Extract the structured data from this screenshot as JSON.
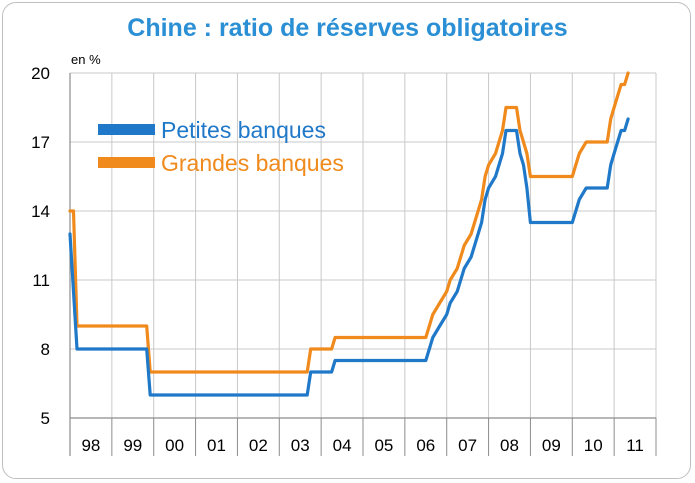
{
  "chart_data": {
    "type": "line",
    "title": "Chine : ratio de réserves obligatoires",
    "unit_label": "en %",
    "xlabel": "",
    "ylabel": "",
    "ylim": [
      5,
      20
    ],
    "xlim": [
      "1998-01",
      "2011-12"
    ],
    "y_ticks": [
      5,
      8,
      11,
      14,
      17,
      20
    ],
    "x_tick_labels": [
      "98",
      "99",
      "00",
      "01",
      "02",
      "03",
      "04",
      "05",
      "06",
      "07",
      "08",
      "09",
      "10",
      "11"
    ],
    "grid": true,
    "legend_position": "top-left",
    "series": [
      {
        "name": "Petites banques",
        "color": "#1f78c8",
        "points": [
          [
            "1998-01",
            13
          ],
          [
            "1998-03",
            8
          ],
          [
            "1999-11",
            8
          ],
          [
            "1999-12",
            6
          ],
          [
            "2003-09",
            6
          ],
          [
            "2003-10",
            7
          ],
          [
            "2004-04",
            7
          ],
          [
            "2004-05",
            7.5
          ],
          [
            "2006-07",
            7.5
          ],
          [
            "2006-08",
            8
          ],
          [
            "2006-09",
            8.5
          ],
          [
            "2006-11",
            9
          ],
          [
            "2007-01",
            9.5
          ],
          [
            "2007-02",
            10
          ],
          [
            "2007-04",
            10.5
          ],
          [
            "2007-05",
            11
          ],
          [
            "2007-06",
            11.5
          ],
          [
            "2007-08",
            12
          ],
          [
            "2007-09",
            12.5
          ],
          [
            "2007-10",
            13
          ],
          [
            "2007-11",
            13.5
          ],
          [
            "2007-12",
            14.5
          ],
          [
            "2008-01",
            15
          ],
          [
            "2008-03",
            15.5
          ],
          [
            "2008-04",
            16
          ],
          [
            "2008-05",
            16.5
          ],
          [
            "2008-06",
            17.5
          ],
          [
            "2008-09",
            17.5
          ],
          [
            "2008-10",
            16.5
          ],
          [
            "2008-11",
            16
          ],
          [
            "2008-12",
            15
          ],
          [
            "2009-01",
            13.5
          ],
          [
            "2010-01",
            13.5
          ],
          [
            "2010-02",
            14
          ],
          [
            "2010-03",
            14.5
          ],
          [
            "2010-05",
            15
          ],
          [
            "2010-11",
            15
          ],
          [
            "2010-12",
            16
          ],
          [
            "2011-01",
            16.5
          ],
          [
            "2011-02",
            17
          ],
          [
            "2011-03",
            17.5
          ],
          [
            "2011-04",
            17.5
          ],
          [
            "2011-05",
            18
          ]
        ]
      },
      {
        "name": "Grandes banques",
        "color": "#f08a1c",
        "points": [
          [
            "1998-01",
            14
          ],
          [
            "1998-02",
            14
          ],
          [
            "1998-03",
            9
          ],
          [
            "1999-11",
            9
          ],
          [
            "1999-12",
            7
          ],
          [
            "2003-09",
            7
          ],
          [
            "2003-10",
            8
          ],
          [
            "2004-04",
            8
          ],
          [
            "2004-05",
            8.5
          ],
          [
            "2006-07",
            8.5
          ],
          [
            "2006-08",
            9
          ],
          [
            "2006-09",
            9.5
          ],
          [
            "2006-11",
            10
          ],
          [
            "2007-01",
            10.5
          ],
          [
            "2007-02",
            11
          ],
          [
            "2007-04",
            11.5
          ],
          [
            "2007-05",
            12
          ],
          [
            "2007-06",
            12.5
          ],
          [
            "2007-08",
            13
          ],
          [
            "2007-09",
            13.5
          ],
          [
            "2007-10",
            14
          ],
          [
            "2007-11",
            14.5
          ],
          [
            "2007-12",
            15.5
          ],
          [
            "2008-01",
            16
          ],
          [
            "2008-03",
            16.5
          ],
          [
            "2008-04",
            17
          ],
          [
            "2008-05",
            17.5
          ],
          [
            "2008-06",
            18.5
          ],
          [
            "2008-09",
            18.5
          ],
          [
            "2008-10",
            17.5
          ],
          [
            "2008-11",
            17
          ],
          [
            "2008-12",
            16.5
          ],
          [
            "2009-01",
            15.5
          ],
          [
            "2010-01",
            15.5
          ],
          [
            "2010-02",
            16
          ],
          [
            "2010-03",
            16.5
          ],
          [
            "2010-05",
            17
          ],
          [
            "2010-11",
            17
          ],
          [
            "2010-12",
            18
          ],
          [
            "2011-01",
            18.5
          ],
          [
            "2011-02",
            19
          ],
          [
            "2011-03",
            19.5
          ],
          [
            "2011-04",
            19.5
          ],
          [
            "2011-05",
            20
          ]
        ]
      }
    ]
  }
}
